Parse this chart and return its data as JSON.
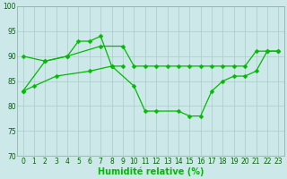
{
  "background_color": "#cce8e8",
  "grid_color": "#aacccc",
  "line_color": "#00bb00",
  "xlabel": "Humidité relative (%)",
  "ylim": [
    70,
    100
  ],
  "xlim": [
    -0.5,
    23.5
  ],
  "yticks": [
    70,
    75,
    80,
    85,
    90,
    95,
    100
  ],
  "xticks": [
    0,
    1,
    2,
    3,
    4,
    5,
    6,
    7,
    8,
    9,
    10,
    11,
    12,
    13,
    14,
    15,
    16,
    17,
    18,
    19,
    20,
    21,
    22,
    23
  ],
  "line1_x": [
    0,
    2,
    4,
    5,
    6,
    7,
    8,
    9
  ],
  "line1_y": [
    83,
    89,
    90,
    93,
    93,
    94,
    88,
    88
  ],
  "line2_x": [
    0,
    2,
    4,
    7,
    9,
    10,
    11,
    12,
    13,
    14,
    15,
    16,
    17,
    18,
    19,
    20,
    21,
    22,
    23
  ],
  "line2_y": [
    90,
    89,
    90,
    92,
    92,
    88,
    88,
    88,
    88,
    88,
    88,
    88,
    88,
    88,
    88,
    88,
    91,
    91,
    91
  ],
  "line3_x": [
    0,
    1,
    3,
    6,
    8,
    10,
    11,
    12,
    14,
    15,
    16,
    17,
    18,
    19,
    20,
    21,
    22,
    23
  ],
  "line3_y": [
    83,
    84,
    86,
    87,
    88,
    84,
    79,
    79,
    79,
    78,
    78,
    83,
    85,
    86,
    86,
    87,
    91,
    91
  ],
  "tick_fontsize": 5.5,
  "xlabel_fontsize": 7,
  "marker_size": 2.5,
  "linewidth": 0.9
}
